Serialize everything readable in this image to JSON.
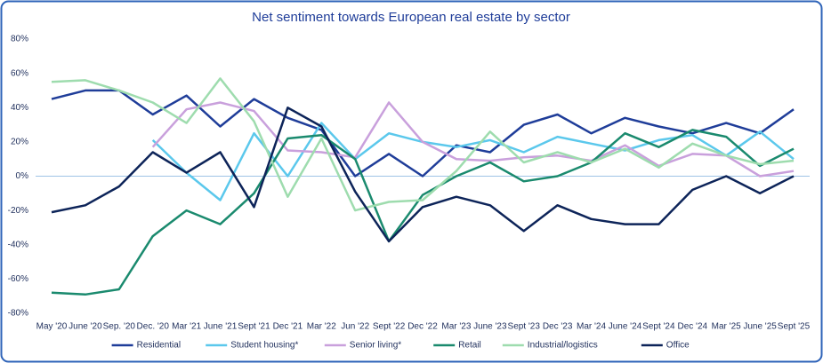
{
  "chart_data": {
    "type": "line",
    "title": "Net sentiment towards European real estate by sector",
    "categories": [
      "May '20",
      "June '20",
      "Sep. '20",
      "Dec. '20",
      "Mar '21",
      "June '21",
      "Sept '21",
      "Dec '21",
      "Mar '22",
      "Jun '22",
      "Sept '22",
      "Dec '22",
      "Mar '23",
      "June '23",
      "Sept '23",
      "Dec '23",
      "Mar '24",
      "June '24",
      "Sept '24",
      "Dec '24",
      "Mar '25",
      "June '25",
      "Sept '25"
    ],
    "series": [
      {
        "name": "Residential",
        "color": "#1f3d99",
        "values": [
          45,
          50,
          50,
          36,
          47,
          29,
          45,
          34,
          27,
          0,
          13,
          0,
          18,
          14,
          30,
          36,
          25,
          34,
          29,
          25,
          31,
          25,
          39
        ]
      },
      {
        "name": "Student housing*",
        "color": "#5bc8ec",
        "values": [
          null,
          null,
          null,
          21,
          2,
          -14,
          25,
          0,
          31,
          10,
          25,
          20,
          17,
          21,
          14,
          23,
          19,
          15,
          21,
          24,
          12,
          26,
          10
        ]
      },
      {
        "name": "Senior living*",
        "color": "#c9a0dc",
        "values": [
          null,
          null,
          null,
          17,
          39,
          43,
          38,
          15,
          14,
          11,
          43,
          20,
          10,
          9,
          11,
          12,
          9,
          18,
          6,
          13,
          12,
          0,
          3
        ]
      },
      {
        "name": "Retail",
        "color": "#1a8a6e",
        "values": [
          -68,
          -69,
          -66,
          -35,
          -20,
          -28,
          -10,
          22,
          24,
          10,
          -38,
          -11,
          0,
          8,
          -3,
          0,
          8,
          25,
          17,
          27,
          23,
          6,
          16
        ]
      },
      {
        "name": "Industrial/logistics",
        "color": "#9edcae",
        "values": [
          55,
          56,
          50,
          43,
          31,
          57,
          32,
          -12,
          22,
          -20,
          -15,
          -14,
          3,
          26,
          8,
          14,
          8,
          16,
          5,
          19,
          12,
          7,
          9
        ]
      },
      {
        "name": "Office",
        "color": "#0d2459",
        "values": [
          -21,
          -17,
          -6,
          14,
          2,
          14,
          -18,
          40,
          29,
          -9,
          -38,
          -18,
          -12,
          -17,
          -32,
          -17,
          -25,
          -28,
          -28,
          -8,
          0,
          -10,
          0
        ]
      }
    ],
    "ylim": [
      -80,
      80
    ],
    "yticks": [
      {
        "value": -80,
        "label": "-80%"
      },
      {
        "value": -60,
        "label": "-60%"
      },
      {
        "value": -40,
        "label": "-40%"
      },
      {
        "value": -20,
        "label": "-20%"
      },
      {
        "value": 0,
        "label": "0%"
      },
      {
        "value": 20,
        "label": "20%"
      },
      {
        "value": 40,
        "label": "40%"
      },
      {
        "value": 60,
        "label": "60%"
      },
      {
        "value": 80,
        "label": "80%"
      }
    ],
    "legend": "bottom"
  }
}
